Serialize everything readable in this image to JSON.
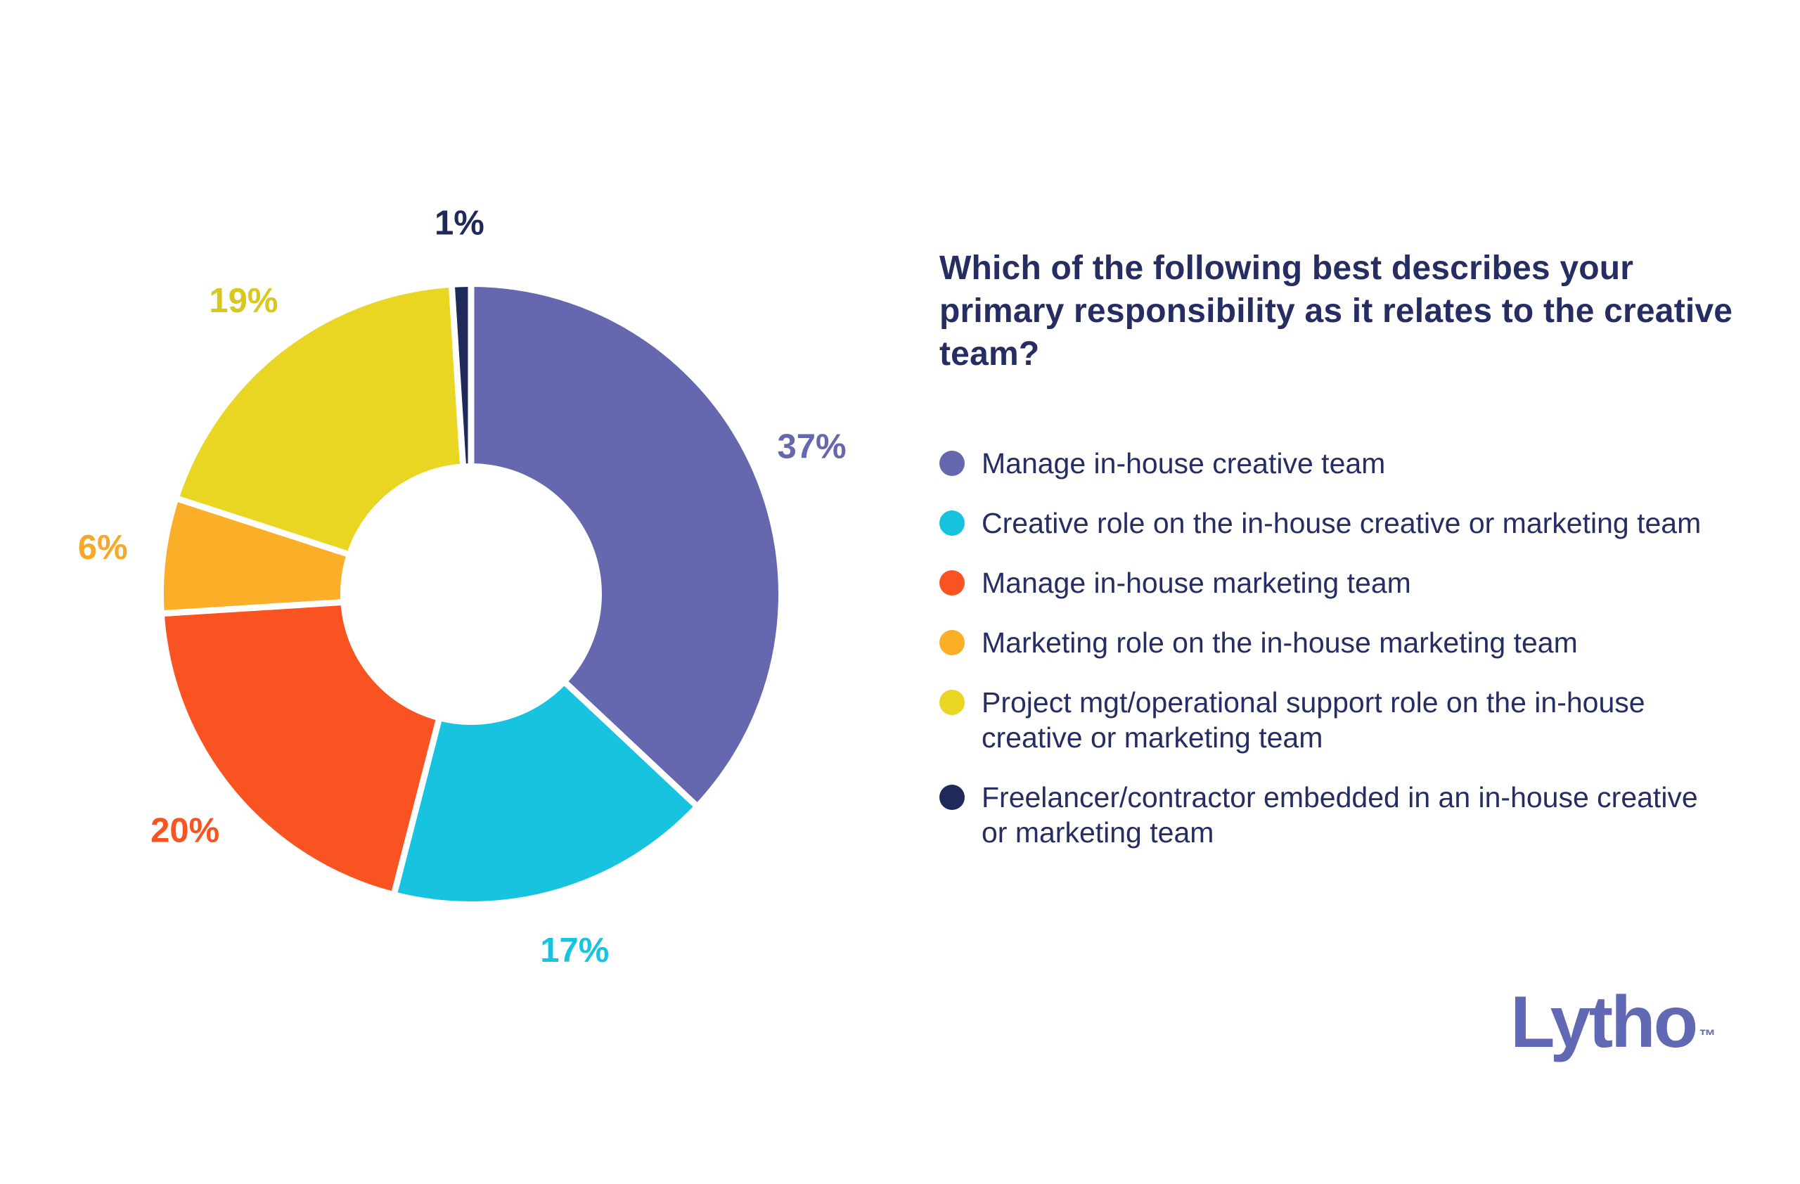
{
  "chart_data": {
    "type": "pie",
    "variant": "donut",
    "title": "Which of the following best describes your primary responsibility as it relates to the creative team?",
    "title_lines": [
      "Which of the following best describes your primary",
      "responsibility as it relates to the creative team?"
    ],
    "start_angle_deg": -90,
    "direction": "clockwise",
    "legend_position": "right",
    "inner_radius_ratio": 0.425,
    "segments": [
      {
        "label": "Manage in-house creative team",
        "value": 37,
        "display": "37%",
        "color": "#6568af",
        "label_color": "#6568af"
      },
      {
        "label": "Creative role on the in-house creative or marketing team",
        "value": 17,
        "display": "17%",
        "color": "#17c3de",
        "label_color": "#17c3de"
      },
      {
        "label": "Manage in-house marketing team",
        "value": 20,
        "display": "20%",
        "color": "#f95322",
        "label_color": "#f95322"
      },
      {
        "label": "Marketing role on the in-house marketing team",
        "value": 6,
        "display": "6%",
        "color": "#fbae27",
        "label_color": "#f9a826"
      },
      {
        "label": "Project mgt/operational support role on the in-house creative or marketing team",
        "value": 19,
        "display": "19%",
        "color": "#e9d622",
        "label_color": "#d9c71c"
      },
      {
        "label": "Freelancer/contractor embedded in an in-house creative or marketing team",
        "value": 1,
        "display": "1%",
        "color": "#1f2a5a",
        "label_color": "#1f2a5a"
      }
    ]
  },
  "branding": {
    "logo_text": "Lytho",
    "trademark": "™",
    "logo_color": "#6169b4"
  }
}
